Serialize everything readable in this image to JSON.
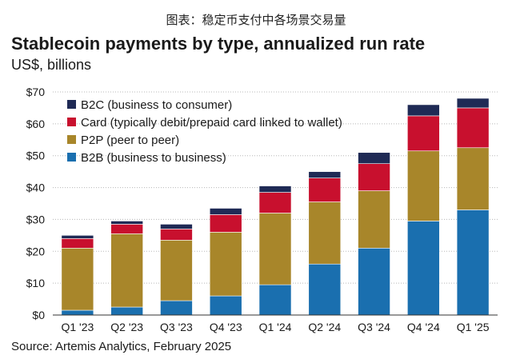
{
  "caption": "图表：稳定币支付中各场景交易量",
  "source": "Source: Artemis Analytics, February 2025",
  "chart_data": {
    "type": "bar",
    "stacked": true,
    "title": "Stablecoin payments by type, annualized run rate",
    "subtitle": "US$, billions",
    "categories": [
      "Q1 '23",
      "Q2 '23",
      "Q3 '23",
      "Q4 '23",
      "Q1 '24",
      "Q2 '24",
      "Q3 '24",
      "Q4 '24",
      "Q1 '25"
    ],
    "ylim": [
      0,
      70
    ],
    "yticks": [
      0,
      10,
      20,
      30,
      40,
      50,
      60,
      70
    ],
    "ytick_labels": [
      "$0",
      "$10",
      "$20",
      "$30",
      "$40",
      "$50",
      "$60",
      "$70"
    ],
    "grid": true,
    "legend_position": "top-left",
    "series": [
      {
        "name": "B2B (business to business)",
        "color": "#1a6faf",
        "values": [
          1.5,
          2.5,
          4.5,
          6,
          9.5,
          16,
          21,
          29.5,
          33
        ]
      },
      {
        "name": "P2P (peer to peer)",
        "color": "#a8862a",
        "values": [
          19.5,
          23,
          19,
          20,
          22.5,
          19.5,
          18,
          22,
          19.5
        ]
      },
      {
        "name": "Card (typically debit/prepaid card linked to wallet)",
        "color": "#c8102e",
        "values": [
          3,
          3,
          3.5,
          5.5,
          6.5,
          7.5,
          8.5,
          11,
          12.5
        ]
      },
      {
        "name": "B2C (business to consumer)",
        "color": "#1f2a55",
        "values": [
          1,
          1,
          1.5,
          2,
          2,
          2,
          3.5,
          3.5,
          3
        ]
      }
    ],
    "legend_order": [
      3,
      2,
      1,
      0
    ]
  }
}
